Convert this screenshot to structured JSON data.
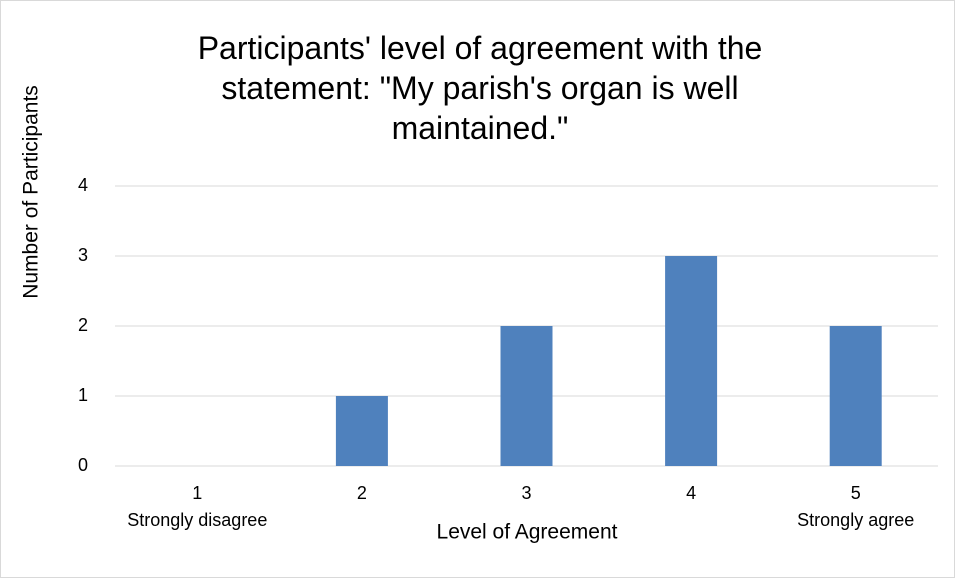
{
  "chart_data": {
    "type": "bar",
    "title": "Participants' level of agreement with the statement: \"My parish's organ is well maintained.\"",
    "x_label": "Level of Agreement",
    "y_label": "Number of Participants",
    "categories": [
      "1",
      "2",
      "3",
      "4",
      "5"
    ],
    "category_sublabels": [
      "Strongly disagree",
      null,
      null,
      null,
      "Strongly agree"
    ],
    "values": [
      0,
      1,
      2,
      3,
      2
    ],
    "color": "#4f81bd",
    "ylim": [
      0,
      4
    ],
    "yticks": [
      0,
      1,
      2,
      3,
      4
    ],
    "grid": true
  }
}
